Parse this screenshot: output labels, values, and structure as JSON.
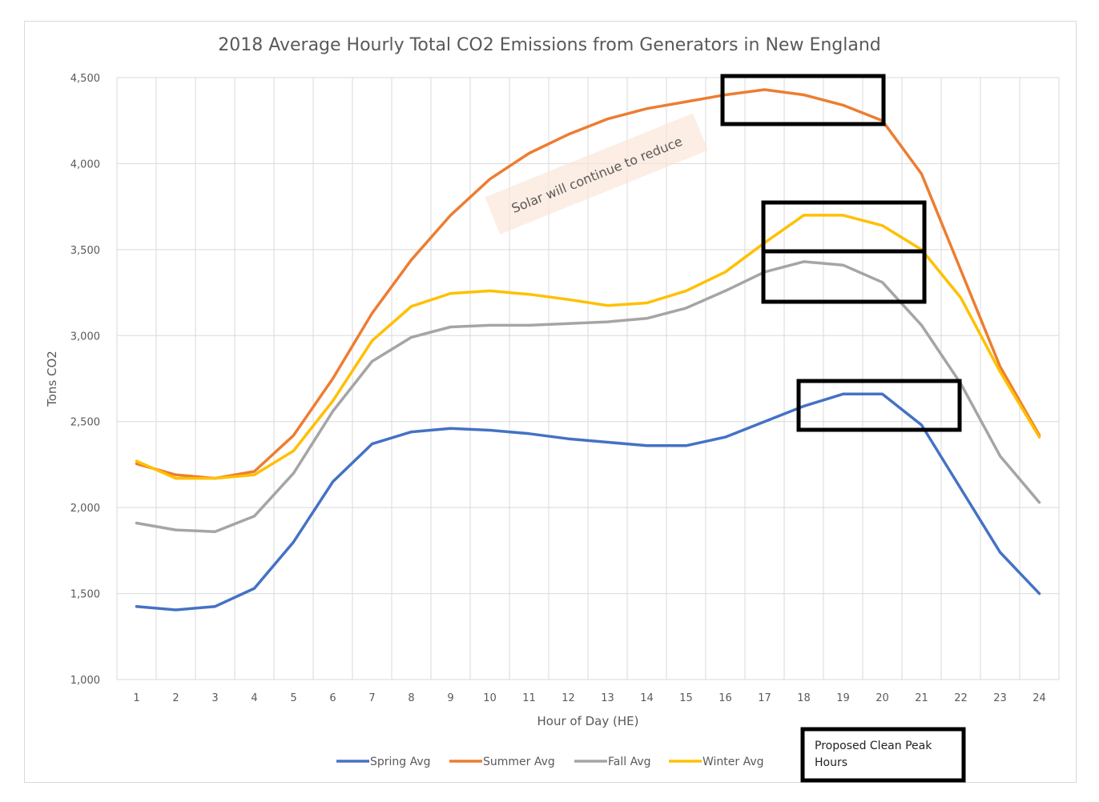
{
  "chart_data": {
    "type": "line",
    "title": "2018 Average Hourly Total CO2 Emissions from Generators in New England",
    "xlabel": "Hour of Day (HE)",
    "ylabel": "Tons CO2",
    "x": [
      "1",
      "2",
      "3",
      "4",
      "5",
      "6",
      "7",
      "8",
      "9",
      "10",
      "11",
      "12",
      "13",
      "14",
      "15",
      "16",
      "17",
      "18",
      "19",
      "20",
      "21",
      "22",
      "23",
      "24"
    ],
    "ylim": [
      1000,
      4500
    ],
    "yticks": [
      "1,000",
      "1,500",
      "2,000",
      "2,500",
      "3,000",
      "3,500",
      "4,000",
      "4,500"
    ],
    "ytick_values": [
      1000,
      1500,
      2000,
      2500,
      3000,
      3500,
      4000,
      4500
    ],
    "grid": true,
    "legend_position": "bottom",
    "series": [
      {
        "name": "Spring Avg",
        "color": "#4472c4",
        "values": [
          1425,
          1405,
          1425,
          1530,
          1800,
          2150,
          2370,
          2440,
          2460,
          2450,
          2430,
          2400,
          2380,
          2360,
          2360,
          2410,
          2500,
          2590,
          2660,
          2660,
          2480,
          2110,
          1740,
          1500
        ]
      },
      {
        "name": "Summer Avg",
        "color": "#ed7d31",
        "values": [
          2255,
          2190,
          2170,
          2210,
          2420,
          2750,
          3130,
          3440,
          3700,
          3910,
          4060,
          4170,
          4260,
          4320,
          4360,
          4400,
          4430,
          4400,
          4340,
          4250,
          3940,
          3380,
          2820,
          2420
        ]
      },
      {
        "name": "Fall Avg",
        "color": "#a5a5a5",
        "values": [
          1910,
          1870,
          1860,
          1950,
          2200,
          2560,
          2850,
          2990,
          3050,
          3060,
          3060,
          3070,
          3080,
          3100,
          3160,
          3260,
          3370,
          3430,
          3410,
          3310,
          3060,
          2720,
          2300,
          2030
        ]
      },
      {
        "name": "Winter Avg",
        "color": "#ffc000",
        "values": [
          2270,
          2170,
          2170,
          2190,
          2330,
          2620,
          2970,
          3170,
          3245,
          3260,
          3240,
          3210,
          3175,
          3190,
          3260,
          3370,
          3540,
          3700,
          3700,
          3640,
          3500,
          3220,
          2790,
          2410
        ]
      }
    ],
    "annotations": {
      "solar_text": "Solar will continue to reduce",
      "peak_box_label": "Proposed Clean Peak Hours",
      "peak_box_label_lines": [
        "Proposed Clean Peak",
        "Hours"
      ]
    }
  }
}
